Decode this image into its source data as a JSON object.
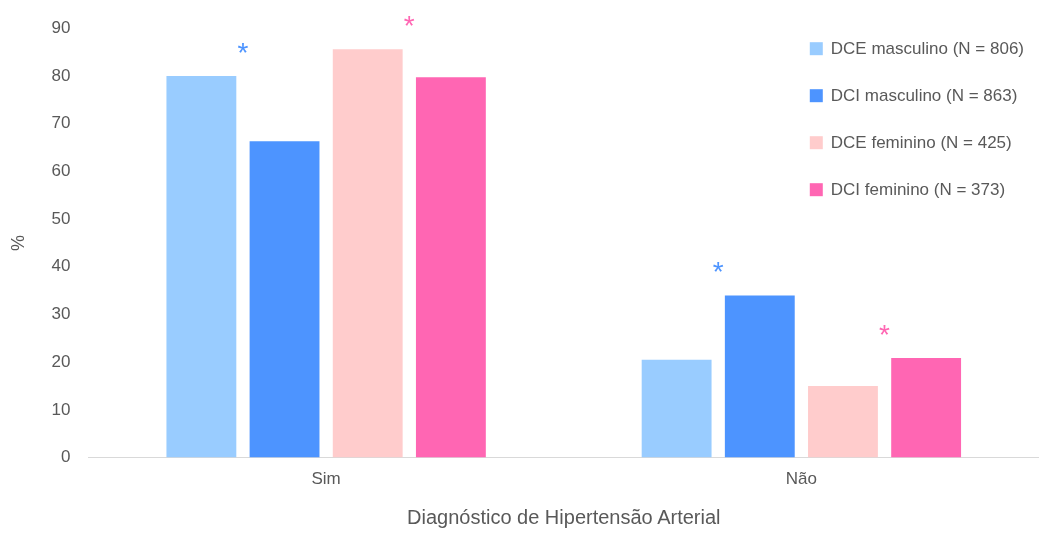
{
  "chart_data": {
    "type": "bar",
    "xlabel": "Diagnóstico de Hipertensão Arterial",
    "ylabel": "%",
    "categories": [
      "Sim",
      "Não"
    ],
    "series": [
      {
        "name": "DCE masculino (N = 806)",
        "color": "#99ccff",
        "values": [
          80,
          20.5
        ]
      },
      {
        "name": "DCI masculino (N = 863)",
        "color": "#4d94ff",
        "values": [
          66.3,
          34
        ]
      },
      {
        "name": "DCE feminino (N = 425)",
        "color": "#ffcccc",
        "values": [
          85.6,
          15
        ]
      },
      {
        "name": "DCI feminino (N = 373)",
        "color": "#ff66b3",
        "values": [
          79.7,
          20.9
        ]
      }
    ],
    "annotations": [
      "*",
      "*",
      "*",
      "*"
    ],
    "ylim": [
      0,
      90
    ],
    "yticks": [
      0,
      10,
      20,
      30,
      40,
      50,
      60,
      70,
      80,
      90
    ],
    "grid": false,
    "legend": "top right"
  }
}
